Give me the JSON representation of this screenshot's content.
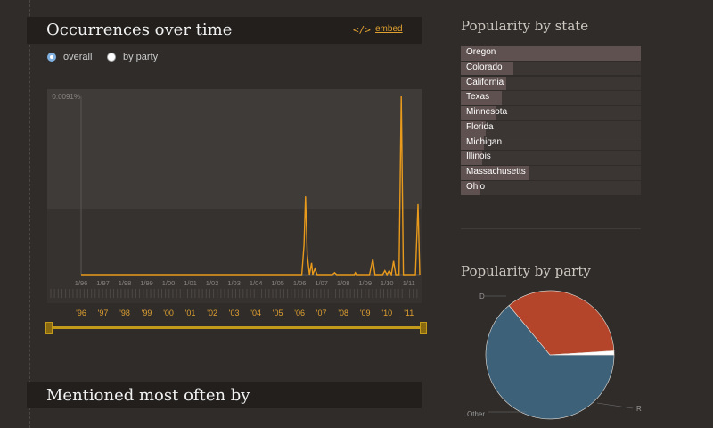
{
  "time_panel": {
    "title": "Occurrences over time",
    "embed_icon": "</>",
    "embed_label": "embed",
    "radio_options": [
      {
        "label": "overall",
        "selected": true
      },
      {
        "label": "by party",
        "selected": false
      }
    ]
  },
  "mentioned_panel": {
    "title": "Mentioned most often by"
  },
  "chart_data": {
    "type": "line",
    "y_max_label": "0.0091%",
    "ylim": [
      0,
      0.0091
    ],
    "x_tick_labels": [
      "1/96",
      "1/97",
      "1/98",
      "1/99",
      "1/00",
      "1/01",
      "1/02",
      "1/03",
      "1/04",
      "1/05",
      "1/06",
      "1/07",
      "1/08",
      "1/09",
      "1/10",
      "1/11"
    ],
    "year_labels": [
      "'96",
      "'97",
      "'98",
      "'99",
      "'00",
      "'01",
      "'02",
      "'03",
      "'04",
      "'05",
      "'06",
      "'07",
      "'08",
      "'09",
      "'10",
      "'11"
    ],
    "x_range": [
      1996.0,
      2011.5
    ],
    "series": [
      {
        "color": "#e89a1c",
        "points": [
          [
            1996.0,
            0
          ],
          [
            2006.1,
            0
          ],
          [
            2006.2,
            0.0015
          ],
          [
            2006.27,
            0.004
          ],
          [
            2006.35,
            0.001
          ],
          [
            2006.45,
            0
          ],
          [
            2006.55,
            0.0006
          ],
          [
            2006.6,
            0
          ],
          [
            2006.7,
            0.0003
          ],
          [
            2006.8,
            0
          ],
          [
            2007.5,
            0
          ],
          [
            2007.6,
            0.0001
          ],
          [
            2007.7,
            0
          ],
          [
            2008.5,
            0
          ],
          [
            2008.55,
            0.0001
          ],
          [
            2008.6,
            0
          ],
          [
            2009.2,
            0
          ],
          [
            2009.35,
            0.0008
          ],
          [
            2009.45,
            0
          ],
          [
            2009.8,
            0
          ],
          [
            2009.9,
            0.0002
          ],
          [
            2010.0,
            0
          ],
          [
            2010.1,
            0.0002
          ],
          [
            2010.2,
            0
          ],
          [
            2010.3,
            0.0007
          ],
          [
            2010.4,
            0
          ],
          [
            2010.55,
            0
          ],
          [
            2010.65,
            0.0091
          ],
          [
            2010.75,
            0
          ],
          [
            2011.3,
            0
          ],
          [
            2011.42,
            0.0036
          ],
          [
            2011.5,
            0
          ]
        ]
      }
    ]
  },
  "state_panel": {
    "title": "Popularity by state",
    "states": [
      {
        "name": "Oregon",
        "value": 1.0
      },
      {
        "name": "Colorado",
        "value": 0.29
      },
      {
        "name": "California",
        "value": 0.25
      },
      {
        "name": "Texas",
        "value": 0.23
      },
      {
        "name": "Minnesota",
        "value": 0.2
      },
      {
        "name": "Florida",
        "value": 0.14
      },
      {
        "name": "Michigan",
        "value": 0.13
      },
      {
        "name": "Illinois",
        "value": 0.12
      },
      {
        "name": "Massachusetts",
        "value": 0.38
      },
      {
        "name": "Ohio",
        "value": 0.11
      }
    ]
  },
  "party_panel": {
    "title": "Popularity by party",
    "slices": [
      {
        "label": "D",
        "value": 0.64,
        "color": "#3d6179"
      },
      {
        "label": "R",
        "value": 0.35,
        "color": "#b4452a"
      },
      {
        "label": "Other",
        "value": 0.01,
        "color": "#ffffff"
      }
    ]
  }
}
